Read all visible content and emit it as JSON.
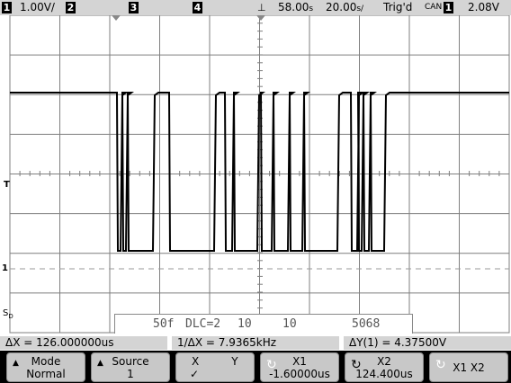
{
  "status": {
    "ch1_num": "1",
    "ch1_scale": "1.00V/",
    "ch2_num": "2",
    "ch3_num": "3",
    "ch4_num": "4",
    "delay": "58.00",
    "delay_unit": "s",
    "timebase": "20.00",
    "timebase_unit": "s/",
    "trigger_state": "Trig'd",
    "trigger_source": "CAN",
    "trigger_ch": "1",
    "trigger_level": "2.08V"
  },
  "markers": {
    "trigger_level_marker": "T",
    "ground_marker": "1",
    "serial_marker": "S",
    "serial_sub": "D"
  },
  "decode": {
    "fields": [
      "50f",
      "DLC=2",
      "10",
      "10",
      "5068"
    ]
  },
  "measurements": {
    "delta_x": "ΔX = 126.000000us",
    "inv_delta_x": "1/ΔX = 7.9365kHz",
    "delta_y": "ΔY(1) = 4.37500V"
  },
  "softkeys": {
    "mode_label": "Mode",
    "mode_value": "Normal",
    "source_label": "Source",
    "source_value": "1",
    "xy_x": "X",
    "xy_y": "Y",
    "xy_check": "✓",
    "x1_label": "X1",
    "x1_value": "-1.60000us",
    "x2_label": "X2",
    "x2_value": "124.400us",
    "x1x2_label": "X1 X2"
  },
  "colors": {
    "status_bg": "#d4d4d4",
    "softkey_bg": "#c8c8c8",
    "trace": "#000000"
  }
}
